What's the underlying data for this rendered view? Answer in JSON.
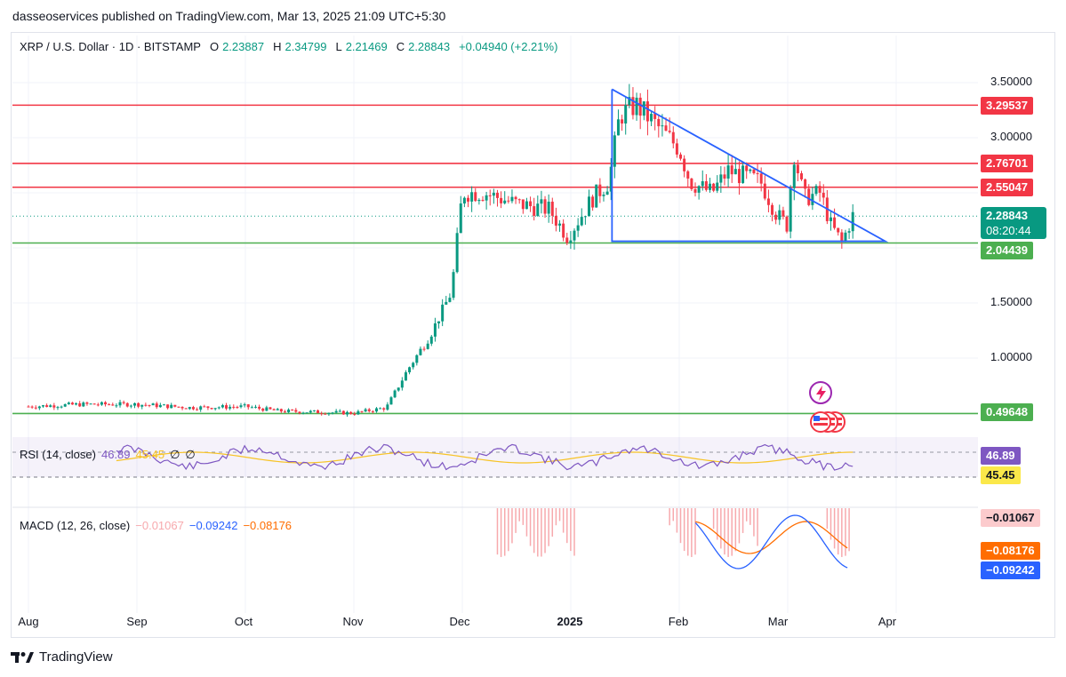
{
  "attribution": "dasseoservices published on TradingView.com, Mar 13, 2025 21:09 UTC+5:30",
  "legend": {
    "symbol": "XRP / U.S. Dollar · 1D · BITSTAMP",
    "o_label": "O",
    "o": "2.23887",
    "h_label": "H",
    "h": "2.34799",
    "l_label": "L",
    "l": "2.21469",
    "c_label": "C",
    "c": "2.28843",
    "change": "+0.04940 (+2.21%)"
  },
  "rsi": {
    "label": "RSI (14, close)",
    "v1": "46.89",
    "v2": "45.45",
    "v3": "∅",
    "v4": "∅"
  },
  "macd": {
    "label": "MACD (12, 26, close)",
    "hist": "−0.01067",
    "macd": "−0.09242",
    "signal": "−0.08176"
  },
  "price_axis": [
    "3.50000",
    "3.00000",
    "1.50000",
    "1.00000"
  ],
  "price_labels": [
    {
      "text": "3.29537",
      "bg": "#f23645",
      "fg": "#ffffff"
    },
    {
      "text": "2.76701",
      "bg": "#f23645",
      "fg": "#ffffff"
    },
    {
      "text": "2.55047",
      "bg": "#f23645",
      "fg": "#ffffff"
    },
    {
      "text": "2.28843",
      "bg": "#089981",
      "fg": "#ffffff"
    },
    {
      "text": "08:20:44",
      "bg": "#089981",
      "fg": "#ffffff"
    },
    {
      "text": "2.04439",
      "bg": "#4caf50",
      "fg": "#ffffff"
    },
    {
      "text": "0.49648",
      "bg": "#4caf50",
      "fg": "#ffffff"
    },
    {
      "text": "46.89",
      "bg": "#7e57c2",
      "fg": "#ffffff"
    },
    {
      "text": "45.45",
      "bg": "#fbe84a",
      "fg": "#131722"
    },
    {
      "text": "−0.01067",
      "bg": "#fccbcd",
      "fg": "#131722"
    },
    {
      "text": "−0.08176",
      "bg": "#ff6d00",
      "fg": "#ffffff"
    },
    {
      "text": "−0.09242",
      "bg": "#2962ff",
      "fg": "#ffffff"
    }
  ],
  "time_axis": [
    "Aug",
    "Sep",
    "Oct",
    "Nov",
    "Dec",
    "2025",
    "Feb",
    "Mar",
    "Apr"
  ],
  "footer": "TradingView",
  "colors": {
    "up": "#089981",
    "down": "#f23645",
    "resistance": "#f23645",
    "support": "#4caf50",
    "triangle": "#2962ff"
  },
  "chart_data": {
    "type": "candlestick",
    "title": "XRP / U.S. Dollar · 1D · BITSTAMP",
    "horizontal_levels": {
      "resistance": [
        3.29537,
        2.76701,
        2.55047
      ],
      "support": [
        2.04439,
        0.49648
      ]
    },
    "last_close": 2.28843,
    "approx_path": [
      {
        "x": "Aug",
        "close": 0.56
      },
      {
        "x": "Sep",
        "close": 0.58
      },
      {
        "x": "Oct",
        "close": 0.55
      },
      {
        "x": "Nov",
        "close": 0.5
      },
      {
        "x": "mid-Nov",
        "close": 1.1
      },
      {
        "x": "Dec",
        "close": 2.6
      },
      {
        "x": "2025",
        "close": 2.15
      },
      {
        "x": "mid-Jan",
        "close": 3.2
      },
      {
        "x": "Feb",
        "close": 2.75
      },
      {
        "x": "Mar",
        "close": 2.9
      },
      {
        "x": "Mar 13",
        "close": 2.29
      }
    ],
    "rsi": {
      "rsi": 46.89,
      "ma": 45.45
    },
    "macd": {
      "histogram": -0.01067,
      "macd": -0.09242,
      "signal": -0.08176
    }
  }
}
